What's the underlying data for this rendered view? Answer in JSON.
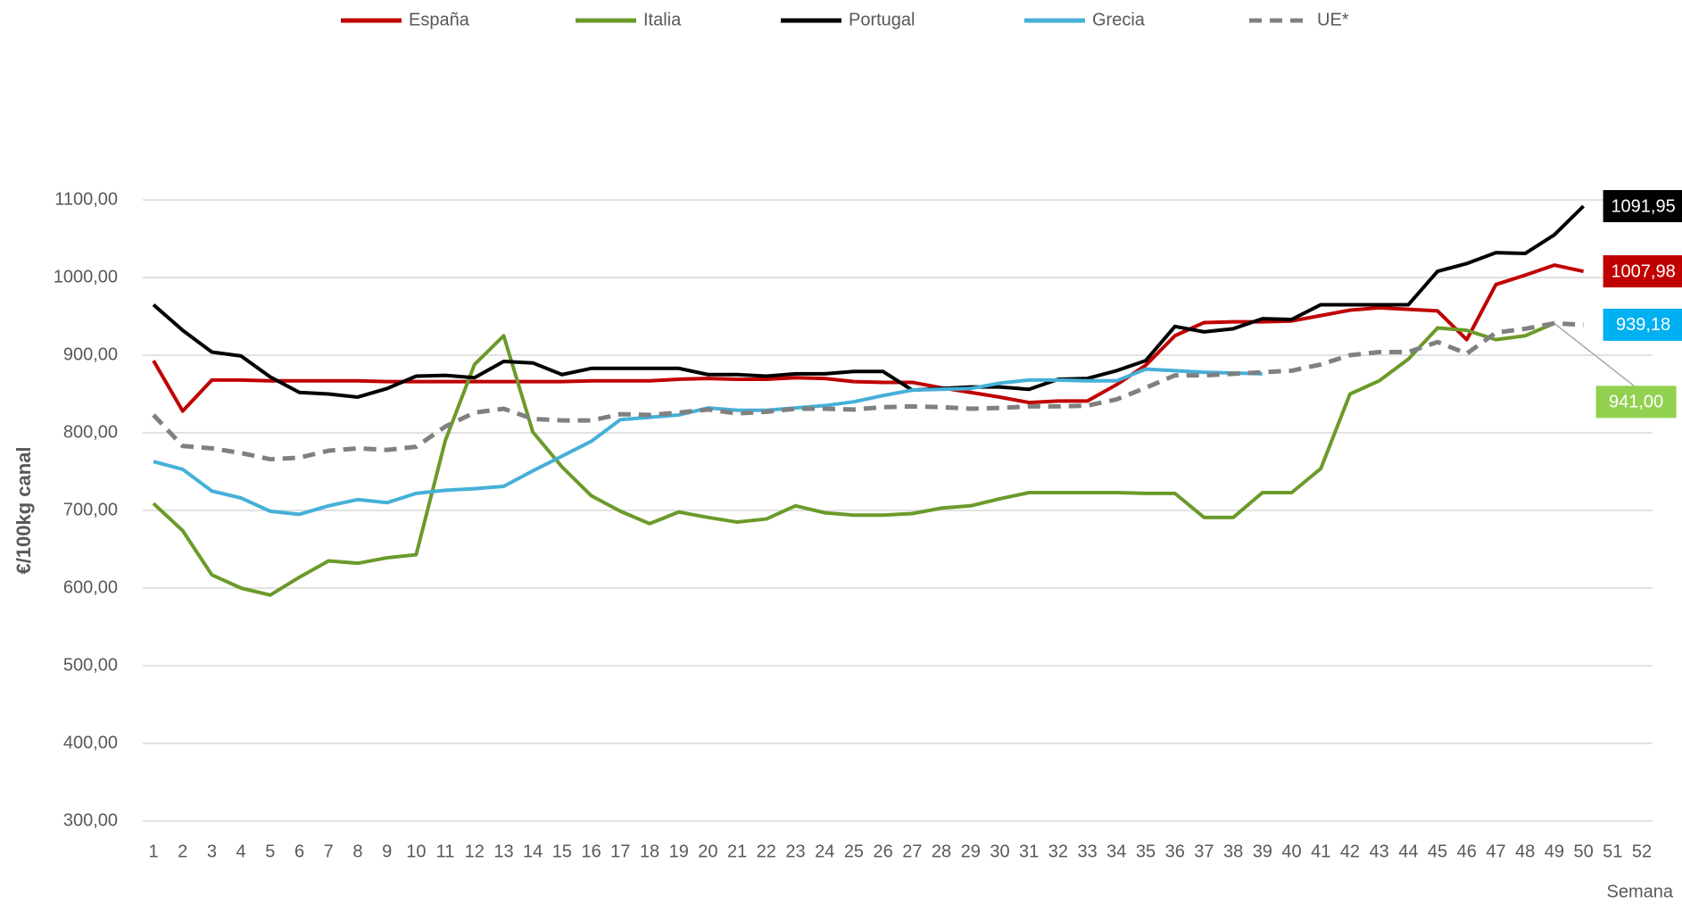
{
  "chart_data": {
    "type": "line",
    "x_label": "Semana",
    "y_label": "€/100kg canal",
    "categories": [
      "1",
      "2",
      "3",
      "4",
      "5",
      "6",
      "7",
      "8",
      "9",
      "10",
      "11",
      "12",
      "13",
      "14",
      "15",
      "16",
      "17",
      "18",
      "19",
      "20",
      "21",
      "22",
      "23",
      "24",
      "25",
      "26",
      "27",
      "28",
      "29",
      "30",
      "31",
      "32",
      "33",
      "34",
      "35",
      "36",
      "37",
      "38",
      "39",
      "40",
      "41",
      "42",
      "43",
      "44",
      "45",
      "46",
      "47",
      "48",
      "49",
      "50",
      "51",
      "52"
    ],
    "ylim": [
      300,
      1100
    ],
    "yticks": [
      {
        "value": 300,
        "label": "300,00"
      },
      {
        "value": 400,
        "label": "400,00"
      },
      {
        "value": 500,
        "label": "500,00"
      },
      {
        "value": 600,
        "label": "600,00"
      },
      {
        "value": 700,
        "label": "700,00"
      },
      {
        "value": 800,
        "label": "800,00"
      },
      {
        "value": 900,
        "label": "900,00"
      },
      {
        "value": 1000,
        "label": "1000,00"
      },
      {
        "value": 1100,
        "label": "1100,00"
      }
    ],
    "grid": true,
    "series": [
      {
        "name": "España",
        "color": "#c00000",
        "label_color": "#c00000",
        "values": [
          893,
          828,
          868,
          868,
          867,
          867,
          867,
          867,
          866,
          866,
          866,
          866,
          866,
          866,
          866,
          867,
          867,
          867,
          869,
          870,
          869,
          869,
          871,
          870,
          866,
          865,
          865,
          858,
          852,
          846,
          839,
          841,
          841,
          862,
          887,
          925,
          942,
          943,
          943,
          944,
          951,
          958,
          961,
          959,
          957,
          920,
          991,
          1003,
          1016,
          1007.98,
          null,
          null
        ],
        "value_labels": [
          null,
          null,
          null,
          null,
          null,
          null,
          null,
          null,
          null,
          null,
          null,
          null,
          null,
          null,
          null,
          null,
          null,
          null,
          null,
          null,
          null,
          null,
          null,
          null,
          null,
          null,
          null,
          null,
          null,
          null,
          null,
          null,
          null,
          null,
          null,
          null,
          null,
          null,
          null,
          null,
          null,
          null,
          null,
          null,
          null,
          null,
          null,
          null,
          null,
          "1007,98",
          null,
          null
        ]
      },
      {
        "name": "Italia",
        "color": "#6b9a2a",
        "label_color": "#92d050",
        "values": [
          709,
          674,
          617,
          600,
          591,
          614,
          635,
          632,
          639,
          643,
          790,
          888,
          925,
          801,
          756,
          719,
          699,
          683,
          698,
          691,
          685,
          689,
          706,
          697,
          694,
          694,
          696,
          703,
          706,
          715,
          723,
          723,
          723,
          723,
          722,
          722,
          691,
          691,
          723,
          723,
          754,
          850,
          867,
          895,
          935,
          932,
          920,
          925,
          941.0,
          null,
          null,
          null
        ],
        "value_labels": [
          null,
          null,
          null,
          null,
          null,
          null,
          null,
          null,
          null,
          null,
          null,
          null,
          null,
          null,
          null,
          null,
          null,
          null,
          null,
          null,
          null,
          null,
          null,
          null,
          null,
          null,
          null,
          null,
          null,
          null,
          null,
          null,
          null,
          null,
          null,
          null,
          null,
          null,
          null,
          null,
          null,
          null,
          null,
          null,
          null,
          null,
          null,
          null,
          "941,00",
          null,
          null,
          null
        ]
      },
      {
        "name": "Portugal",
        "color": "#000000",
        "label_color": "#000000",
        "values": [
          965,
          932,
          904,
          899,
          872,
          852,
          850,
          846,
          857,
          873,
          874,
          871,
          892,
          890,
          875,
          883,
          883,
          883,
          883,
          875,
          875,
          873,
          876,
          876,
          879,
          879,
          855,
          857,
          859,
          859,
          856,
          869,
          870,
          880,
          893,
          937,
          930,
          934,
          947,
          946,
          965,
          965,
          965,
          965,
          1008,
          1018,
          1032,
          1031,
          1055,
          1091.95,
          null,
          null
        ],
        "value_labels": [
          null,
          null,
          null,
          null,
          null,
          null,
          null,
          null,
          null,
          null,
          null,
          null,
          null,
          null,
          null,
          null,
          null,
          null,
          null,
          null,
          null,
          null,
          null,
          null,
          null,
          null,
          null,
          null,
          null,
          null,
          null,
          null,
          null,
          null,
          null,
          null,
          null,
          null,
          null,
          null,
          null,
          null,
          null,
          null,
          null,
          null,
          null,
          null,
          null,
          "1091,95",
          null,
          null
        ]
      },
      {
        "name": "Grecia",
        "color": "#45b0d8",
        "label_color": "#00b0f0",
        "values": [
          763,
          753,
          725,
          716,
          699,
          695,
          706,
          714,
          710,
          722,
          726,
          728,
          731,
          751,
          770,
          789,
          817,
          820,
          823,
          832,
          829,
          829,
          832,
          835,
          840,
          848,
          855,
          856,
          857,
          864,
          868,
          868,
          867,
          867,
          882,
          880,
          878,
          877,
          876,
          null,
          null,
          null,
          null,
          null,
          null,
          null,
          null,
          null,
          null,
          null,
          null,
          null
        ]
      },
      {
        "name": "UE*",
        "color": "#808080",
        "dashed": true,
        "label_color": "#00b0f0",
        "values": [
          823,
          783,
          780,
          774,
          766,
          768,
          777,
          780,
          778,
          782,
          808,
          826,
          831,
          818,
          816,
          816,
          824,
          823,
          826,
          830,
          825,
          827,
          831,
          831,
          830,
          833,
          834,
          833,
          831,
          832,
          834,
          834,
          835,
          843,
          858,
          874,
          874,
          876,
          878,
          880,
          888,
          900,
          904,
          904,
          917,
          902,
          929,
          934,
          941,
          939.18,
          null,
          null
        ],
        "value_labels": [
          null,
          null,
          null,
          null,
          null,
          null,
          null,
          null,
          null,
          null,
          null,
          null,
          null,
          null,
          null,
          null,
          null,
          null,
          null,
          null,
          null,
          null,
          null,
          null,
          null,
          null,
          null,
          null,
          null,
          null,
          null,
          null,
          null,
          null,
          null,
          null,
          null,
          null,
          null,
          null,
          null,
          null,
          null,
          null,
          null,
          null,
          null,
          null,
          null,
          "939,18",
          null,
          null
        ]
      }
    ]
  }
}
